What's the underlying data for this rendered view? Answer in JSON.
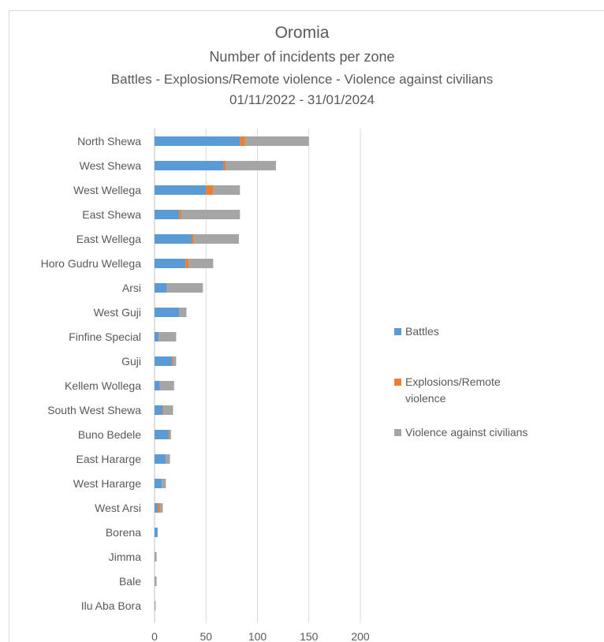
{
  "chart_data": {
    "type": "bar",
    "orientation": "horizontal",
    "stacked": true,
    "title": "Oromia",
    "subtitle": "Number of incidents per zone",
    "subtitle2": "Battles - Explosions/Remote violence - Violence against civilians",
    "date_range": "01/11/2022 - 31/01/2024",
    "xlim": [
      0,
      200
    ],
    "x_ticks": [
      "0",
      "50",
      "100",
      "150",
      "200"
    ],
    "grid": "vertical",
    "legend_position": "right",
    "categories": [
      "North Shewa",
      "West Shewa",
      "West Wellega",
      "East Shewa",
      "East Wellega",
      "Horo Gudru Wellega",
      "Arsi",
      "West Guji",
      "Finfine Special",
      "Guji",
      "Kellem Wollega",
      "South West Shewa",
      "Buno Bedele",
      "East Hararge",
      "West Hararge",
      "West Arsi",
      "Borena",
      "Jimma",
      "Bale",
      "Ilu Aba Bora"
    ],
    "series": [
      {
        "name": "Battles",
        "color": "#5b9bd5",
        "values": [
          83,
          67,
          50,
          24,
          36,
          30,
          12,
          24,
          4,
          17,
          5,
          8,
          14,
          11,
          7,
          3,
          3,
          0,
          0,
          0
        ]
      },
      {
        "name": "Explosions/Remote violence",
        "color": "#ed7d31",
        "values": [
          5,
          2,
          7,
          2,
          2,
          3,
          0,
          0,
          0,
          1,
          0,
          1,
          1,
          0,
          0,
          2,
          0,
          0,
          0,
          0
        ]
      },
      {
        "name": "Violence against civilians",
        "color": "#a5a5a5",
        "values": [
          62,
          49,
          26,
          57,
          44,
          24,
          35,
          7,
          17,
          3,
          14,
          9,
          1,
          4,
          4,
          3,
          0,
          2,
          2,
          1
        ]
      }
    ]
  }
}
